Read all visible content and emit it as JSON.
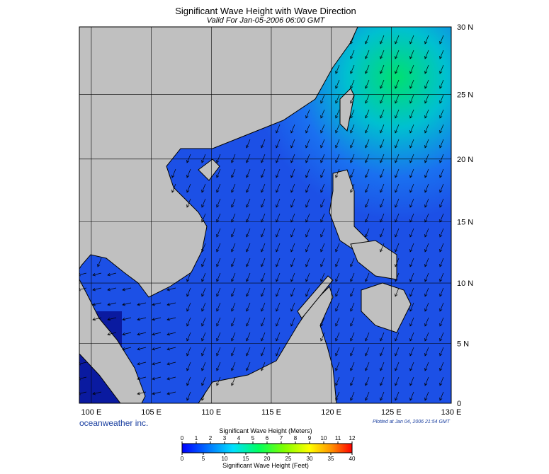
{
  "header": {
    "title": "Significant Wave Height with Wave Direction",
    "subtitle": "Valid For Jan-05-2006 06:00 GMT"
  },
  "map": {
    "xlim": [
      99,
      130
    ],
    "ylim": [
      0,
      30
    ],
    "xticks": [
      {
        "value": 100,
        "label": "100 E"
      },
      {
        "value": 105,
        "label": "105 E"
      },
      {
        "value": 110,
        "label": "110 E"
      },
      {
        "value": 115,
        "label": "115 E"
      },
      {
        "value": 120,
        "label": "120 E"
      },
      {
        "value": 125,
        "label": "125 E"
      },
      {
        "value": 130,
        "label": "130 E"
      }
    ],
    "yticks": [
      {
        "value": 0,
        "label": "0"
      },
      {
        "value": 5,
        "label": "5 N"
      },
      {
        "value": 10,
        "label": "10 N"
      },
      {
        "value": 15,
        "label": "15 N"
      },
      {
        "value": 20,
        "label": "20 N"
      },
      {
        "value": 25,
        "label": "25 N"
      },
      {
        "value": 30,
        "label": "30 N"
      }
    ]
  },
  "footer": {
    "brand": "oceanweather inc.",
    "plotted": "Plotted at Jan 04, 2006 21:54 GMT"
  },
  "colorbar": {
    "meters_title": "Significant Wave Height (Meters)",
    "feet_title": "Significant Wave Height (Feet)",
    "meters_lim": [
      0,
      12
    ],
    "meters_ticks": [
      0,
      1,
      2,
      3,
      4,
      5,
      6,
      7,
      8,
      9,
      10,
      11,
      12
    ],
    "feet_lim": [
      0,
      40
    ],
    "feet_ticks": [
      0,
      5,
      10,
      15,
      20,
      25,
      30,
      35,
      40
    ]
  }
}
